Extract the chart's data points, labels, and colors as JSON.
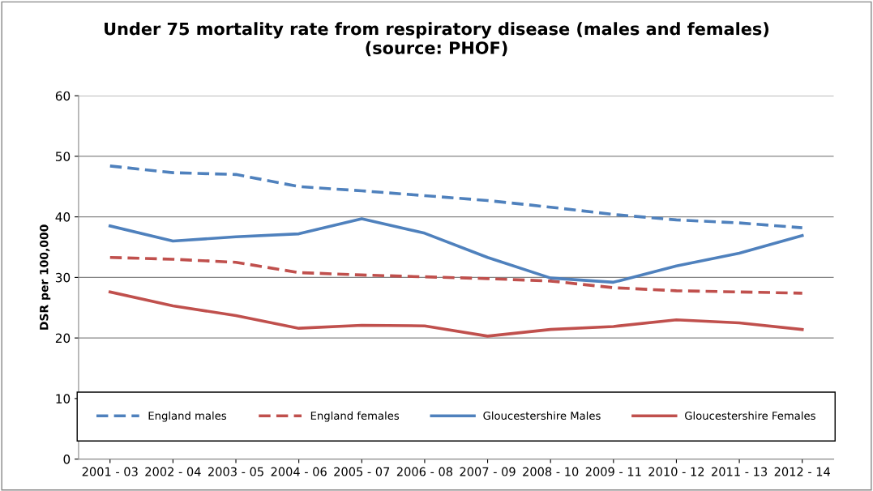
{
  "chart_data": {
    "type": "line",
    "title": "Under 75 mortality rate from respiratory disease (males and females)\n(source: PHOF)",
    "ylabel": "DSR per 100,000",
    "categories": [
      "2001 - 03",
      "2002 - 04",
      "2003 - 05",
      "2004 - 06",
      "2005 - 07",
      "2006 - 08",
      "2007 - 09",
      "2008 - 10",
      "2009 - 11",
      "2010 - 12",
      "2011 - 13",
      "2012 - 14"
    ],
    "series": [
      {
        "name": "England males",
        "color": "#4f81bd",
        "line_style": "dashed",
        "values": [
          48.4,
          47.3,
          47.0,
          45.0,
          44.3,
          43.5,
          42.7,
          41.6,
          40.4,
          39.5,
          39.0,
          38.2
        ]
      },
      {
        "name": "England females",
        "color": "#c0504d",
        "line_style": "dashed",
        "values": [
          33.3,
          33.0,
          32.5,
          30.8,
          30.4,
          30.1,
          29.8,
          29.4,
          28.3,
          27.8,
          27.6,
          27.4
        ]
      },
      {
        "name": "Gloucestershire Males",
        "color": "#4f81bd",
        "line_style": "solid",
        "values": [
          38.5,
          36.0,
          36.7,
          37.2,
          39.7,
          37.3,
          33.3,
          29.9,
          29.2,
          31.9,
          34.0,
          36.9
        ]
      },
      {
        "name": "Gloucestershire Females",
        "color": "#c0504d",
        "line_style": "solid",
        "values": [
          27.6,
          25.3,
          23.7,
          21.6,
          22.1,
          22.0,
          20.3,
          21.4,
          21.9,
          23.0,
          22.5,
          21.4
        ]
      }
    ],
    "ylim": [
      0,
      60
    ],
    "yticks": [
      0,
      10,
      20,
      30,
      40,
      50,
      60
    ],
    "grid": "y",
    "legend": "bottom",
    "marker": "none"
  }
}
